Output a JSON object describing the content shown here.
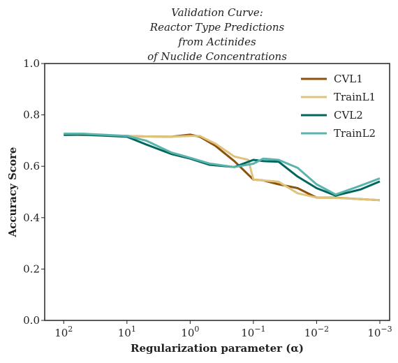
{
  "chart_data": {
    "type": "line",
    "title_lines": [
      "Validation Curve:",
      "Reactor Type Predictions",
      "from Actinides",
      "of Nuclide Concentrations"
    ],
    "xlabel": "Regularization parameter (α)",
    "ylabel": "Accuracy Score",
    "x_scale": "log",
    "x_reversed": true,
    "xlim": [
      200,
      0.0007
    ],
    "ylim": [
      0.0,
      1.0
    ],
    "grid": false,
    "legend_position": "top-right",
    "x_ticks": [
      {
        "base": "10",
        "exp": "2"
      },
      {
        "base": "10",
        "exp": "1"
      },
      {
        "base": "10",
        "exp": "0"
      },
      {
        "base": "10",
        "exp": "−1"
      },
      {
        "base": "10",
        "exp": "−2"
      },
      {
        "base": "10",
        "exp": "−3"
      }
    ],
    "y_ticks": [
      "0.0",
      "0.2",
      "0.4",
      "0.6",
      "0.8",
      "1.0"
    ],
    "series": [
      {
        "name": "CVL1",
        "color": "#8c510a",
        "x": [
          100,
          50,
          10,
          5,
          2,
          1,
          0.7,
          0.4,
          0.2,
          0.1,
          0.07,
          0.04,
          0.02,
          0.01,
          0.005,
          0.002,
          0.001
        ],
        "y": [
          0.725,
          0.722,
          0.718,
          0.716,
          0.715,
          0.723,
          0.715,
          0.68,
          0.62,
          0.548,
          0.545,
          0.53,
          0.515,
          0.478,
          0.478,
          0.472,
          0.468
        ]
      },
      {
        "name": "TrainL1",
        "color": "#dfc27d",
        "x": [
          100,
          50,
          10,
          5,
          2,
          1,
          0.7,
          0.4,
          0.2,
          0.12,
          0.1,
          0.04,
          0.02,
          0.01,
          0.005,
          0.002,
          0.001
        ],
        "y": [
          0.722,
          0.722,
          0.718,
          0.716,
          0.715,
          0.718,
          0.718,
          0.688,
          0.638,
          0.625,
          0.548,
          0.54,
          0.495,
          0.478,
          0.477,
          0.472,
          0.468
        ]
      },
      {
        "name": "CVL2",
        "color": "#01665e",
        "x": [
          100,
          50,
          10,
          5,
          2,
          1,
          0.5,
          0.2,
          0.1,
          0.07,
          0.04,
          0.02,
          0.01,
          0.005,
          0.002,
          0.001
        ],
        "y": [
          0.722,
          0.723,
          0.715,
          0.685,
          0.648,
          0.63,
          0.606,
          0.597,
          0.625,
          0.62,
          0.618,
          0.56,
          0.515,
          0.486,
          0.51,
          0.541
        ]
      },
      {
        "name": "TrainL2",
        "color": "#5ab4ac",
        "x": [
          100,
          50,
          10,
          5,
          2,
          1,
          0.5,
          0.2,
          0.1,
          0.07,
          0.04,
          0.02,
          0.01,
          0.005,
          0.002,
          0.001
        ],
        "y": [
          0.727,
          0.727,
          0.718,
          0.7,
          0.654,
          0.633,
          0.611,
          0.597,
          0.61,
          0.63,
          0.625,
          0.594,
          0.53,
          0.49,
          0.525,
          0.553
        ]
      }
    ]
  }
}
